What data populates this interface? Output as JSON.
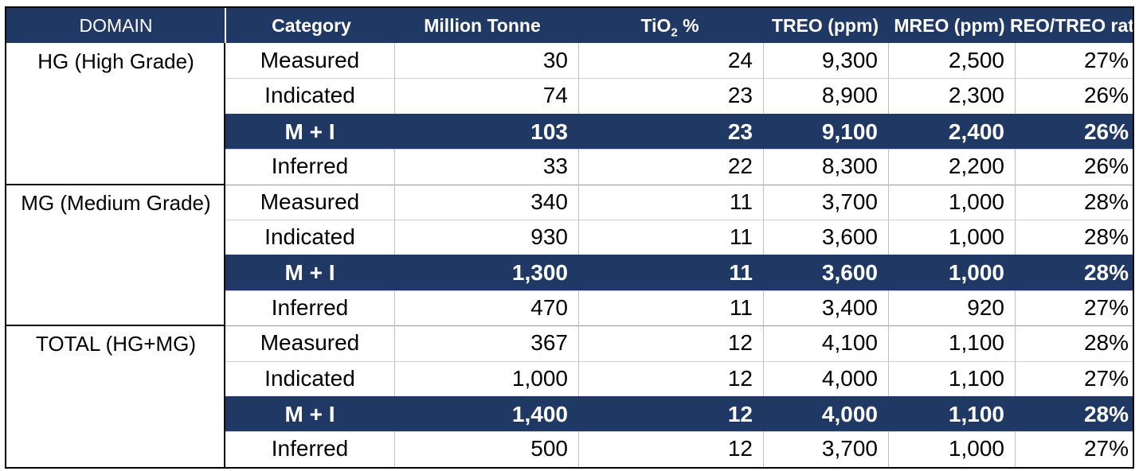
{
  "table": {
    "headers": {
      "domain": "DOMAIN",
      "category": "Category",
      "tonnes": "Million Tonne",
      "tio2_main": "TiO",
      "tio2_sub": "2",
      "tio2_suffix": " %",
      "treo": "TREO (ppm)",
      "mreo": "MREO (ppm)",
      "ratio": "REO/TREO rat"
    },
    "domains": [
      {
        "label": "HG (High Grade)",
        "rows": [
          {
            "category": "Measured",
            "tonnes": "30",
            "tio2": "24",
            "treo": "9,300",
            "mreo": "2,500",
            "ratio": "27%",
            "highlight": false
          },
          {
            "category": "Indicated",
            "tonnes": "74",
            "tio2": "23",
            "treo": "8,900",
            "mreo": "2,300",
            "ratio": "26%",
            "highlight": false
          },
          {
            "category": "M + I",
            "tonnes": "103",
            "tio2": "23",
            "treo": "9,100",
            "mreo": "2,400",
            "ratio": "26%",
            "highlight": true
          },
          {
            "category": "Inferred",
            "tonnes": "33",
            "tio2": "22",
            "treo": "8,300",
            "mreo": "2,200",
            "ratio": "26%",
            "highlight": false
          }
        ]
      },
      {
        "label": "MG (Medium Grade)",
        "rows": [
          {
            "category": "Measured",
            "tonnes": "340",
            "tio2": "11",
            "treo": "3,700",
            "mreo": "1,000",
            "ratio": "28%",
            "highlight": false
          },
          {
            "category": "Indicated",
            "tonnes": "930",
            "tio2": "11",
            "treo": "3,600",
            "mreo": "1,000",
            "ratio": "28%",
            "highlight": false
          },
          {
            "category": "M + I",
            "tonnes": "1,300",
            "tio2": "11",
            "treo": "3,600",
            "mreo": "1,000",
            "ratio": "28%",
            "highlight": true
          },
          {
            "category": "Inferred",
            "tonnes": "470",
            "tio2": "11",
            "treo": "3,400",
            "mreo": "920",
            "ratio": "27%",
            "highlight": false
          }
        ]
      },
      {
        "label": "TOTAL (HG+MG)",
        "rows": [
          {
            "category": "Measured",
            "tonnes": "367",
            "tio2": "12",
            "treo": "4,100",
            "mreo": "1,100",
            "ratio": "28%",
            "highlight": false
          },
          {
            "category": "Indicated",
            "tonnes": "1,000",
            "tio2": "12",
            "treo": "4,000",
            "mreo": "1,100",
            "ratio": "27%",
            "highlight": false
          },
          {
            "category": "M + I",
            "tonnes": "1,400",
            "tio2": "12",
            "treo": "4,000",
            "mreo": "1,100",
            "ratio": "28%",
            "highlight": true
          },
          {
            "category": "Inferred",
            "tonnes": "500",
            "tio2": "12",
            "treo": "3,700",
            "mreo": "1,000",
            "ratio": "27%",
            "highlight": false
          }
        ]
      }
    ]
  },
  "colors": {
    "header_bg": "#1f3864",
    "highlight_bg": "#1f3864",
    "header_text": "#ffffff"
  }
}
